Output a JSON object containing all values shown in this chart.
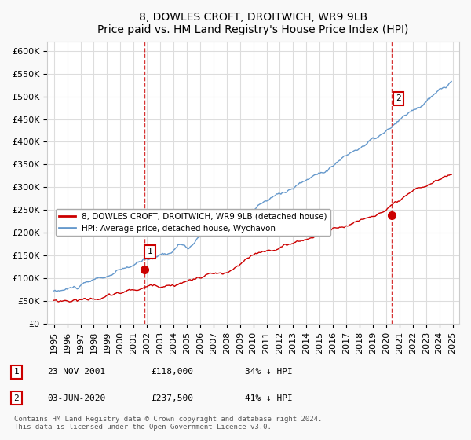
{
  "title": "8, DOWLES CROFT, DROITWICH, WR9 9LB",
  "subtitle": "Price paid vs. HM Land Registry's House Price Index (HPI)",
  "ylabel_ticks": [
    "£0",
    "£50K",
    "£100K",
    "£150K",
    "£200K",
    "£250K",
    "£300K",
    "£350K",
    "£400K",
    "£450K",
    "£500K",
    "£550K",
    "£600K"
  ],
  "ylim": [
    0,
    620000
  ],
  "ytick_values": [
    0,
    50000,
    100000,
    150000,
    200000,
    250000,
    300000,
    350000,
    400000,
    450000,
    500000,
    550000,
    600000
  ],
  "legend_line1": "8, DOWLES CROFT, DROITWICH, WR9 9LB (detached house)",
  "legend_line2": "HPI: Average price, detached house, Wychavon",
  "annotation1_label": "1",
  "annotation1_date": "23-NOV-2001",
  "annotation1_price": "£118,000",
  "annotation1_hpi": "34% ↓ HPI",
  "annotation2_label": "2",
  "annotation2_date": "03-JUN-2020",
  "annotation2_price": "£237,500",
  "annotation2_hpi": "41% ↓ HPI",
  "footnote": "Contains HM Land Registry data © Crown copyright and database right 2024.\nThis data is licensed under the Open Government Licence v3.0.",
  "sale1_color": "#cc0000",
  "sale2_color": "#cc0000",
  "hpi_line_color": "#6699cc",
  "price_line_color": "#cc0000",
  "vline_color": "#cc0000",
  "background_color": "#f9f9f9",
  "plot_bg_color": "#ffffff",
  "grid_color": "#dddddd",
  "annotation_box_color": "#cc0000",
  "figsize": [
    6.0,
    5.6
  ],
  "dpi": 100
}
